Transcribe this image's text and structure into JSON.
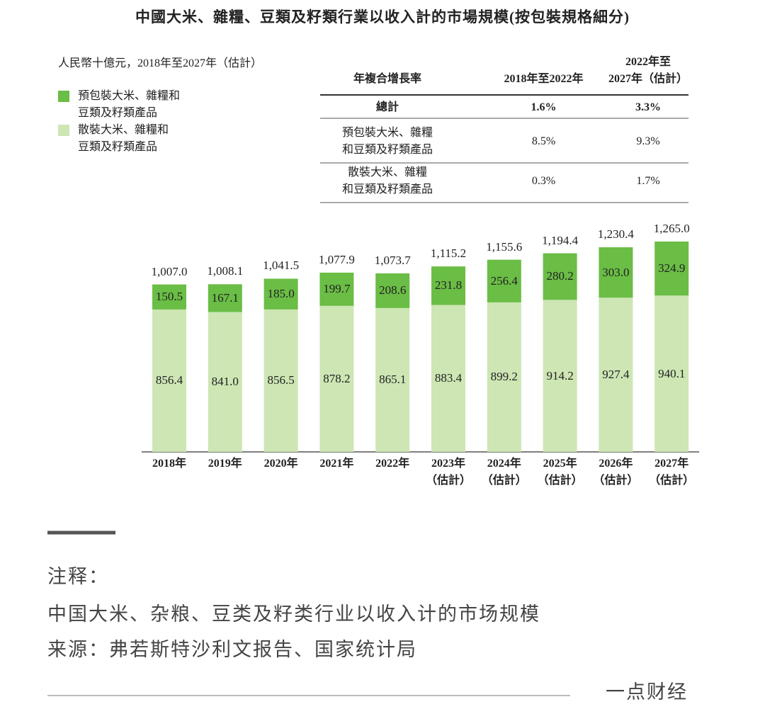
{
  "chart_data": {
    "type": "bar",
    "stacked": true,
    "title": "中國大米、雜糧、豆類及籽類行業以收入計的市場規模(按包裝規格細分)",
    "subtitle": "人民幣十億元，2018年至2027年（估計）",
    "categories": [
      "2018年",
      "2019年",
      "2020年",
      "2021年",
      "2022年",
      "2023年\n（估計）",
      "2024年\n（估計）",
      "2025年\n（估計）",
      "2026年\n（估計）",
      "2027年\n（估計）"
    ],
    "series": [
      {
        "name": "散裝大米、雜糧和\n豆類及籽類產品",
        "color": "#cde6b4",
        "values": [
          856.4,
          841.0,
          856.5,
          878.2,
          865.1,
          883.4,
          899.2,
          914.2,
          927.4,
          940.1
        ],
        "value_labels": [
          "856.4",
          "841.0",
          "856.5",
          "878.2",
          "865.1",
          "883.4",
          "899.2",
          "914.2",
          "927.4",
          "940.1"
        ]
      },
      {
        "name": "預包裝大米、雜糧和\n豆類及籽類產品",
        "color": "#6abd45",
        "values": [
          150.5,
          167.1,
          185.0,
          199.7,
          208.6,
          231.8,
          256.4,
          280.2,
          303.0,
          324.9
        ],
        "value_labels": [
          "150.5",
          "167.1",
          "185.0",
          "199.7",
          "208.6",
          "231.8",
          "256.4",
          "280.2",
          "303.0",
          "324.9"
        ]
      }
    ],
    "totals": [
      1007.0,
      1008.1,
      1041.5,
      1077.9,
      1073.7,
      1115.2,
      1155.6,
      1194.4,
      1230.4,
      1265.0
    ],
    "total_labels": [
      "1,007.0",
      "1,008.1",
      "1,041.5",
      "1,077.9",
      "1,073.7",
      "1,115.2",
      "1,155.6",
      "1,194.4",
      "1,230.4",
      "1,265.0"
    ]
  },
  "table": {
    "header": [
      "年複合增長率",
      "2018年至2022年",
      "2022年至\n2027年（估計）"
    ],
    "rows": [
      [
        "總計",
        "1.6%",
        "3.3%"
      ],
      [
        "預包裝大米、雜糧\n和豆類及籽類產品",
        "8.5%",
        "9.3%"
      ],
      [
        "散裝大米、雜糧\n和豆類及籽類產品",
        "0.3%",
        "1.7%"
      ]
    ]
  },
  "notes": {
    "heading": "注释：",
    "lines": [
      "中国大米、杂粮、豆类及籽类行业以收入计的市场规模",
      "来源：弗若斯特沙利文报告、国家统计局"
    ],
    "brand": "一点财经"
  }
}
